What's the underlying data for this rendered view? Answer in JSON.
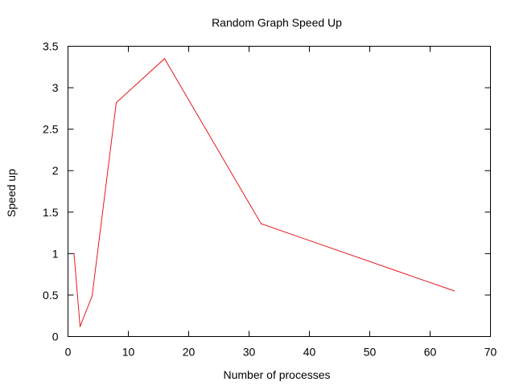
{
  "chart_data": {
    "type": "line",
    "title": "Random Graph Speed Up",
    "xlabel": "Number of processes",
    "ylabel": "Speed up",
    "xlim": [
      0,
      70
    ],
    "ylim": [
      0,
      3.5
    ],
    "xticks": [
      0,
      10,
      20,
      30,
      40,
      50,
      60,
      70
    ],
    "yticks": [
      0,
      0.5,
      1,
      1.5,
      2,
      2.5,
      3,
      3.5
    ],
    "xtick_labels": [
      "0",
      "10",
      "20",
      "30",
      "40",
      "50",
      "60",
      "70"
    ],
    "ytick_labels": [
      "0",
      "0.5",
      "1",
      "1.5",
      "2",
      "2.5",
      "3",
      "3.5"
    ],
    "grid": false,
    "series": [
      {
        "color": "#e41a1c",
        "x": [
          1,
          2,
          4,
          8,
          16,
          32,
          64
        ],
        "y": [
          1.0,
          0.12,
          0.49,
          2.82,
          3.35,
          1.36,
          0.55
        ]
      }
    ]
  }
}
